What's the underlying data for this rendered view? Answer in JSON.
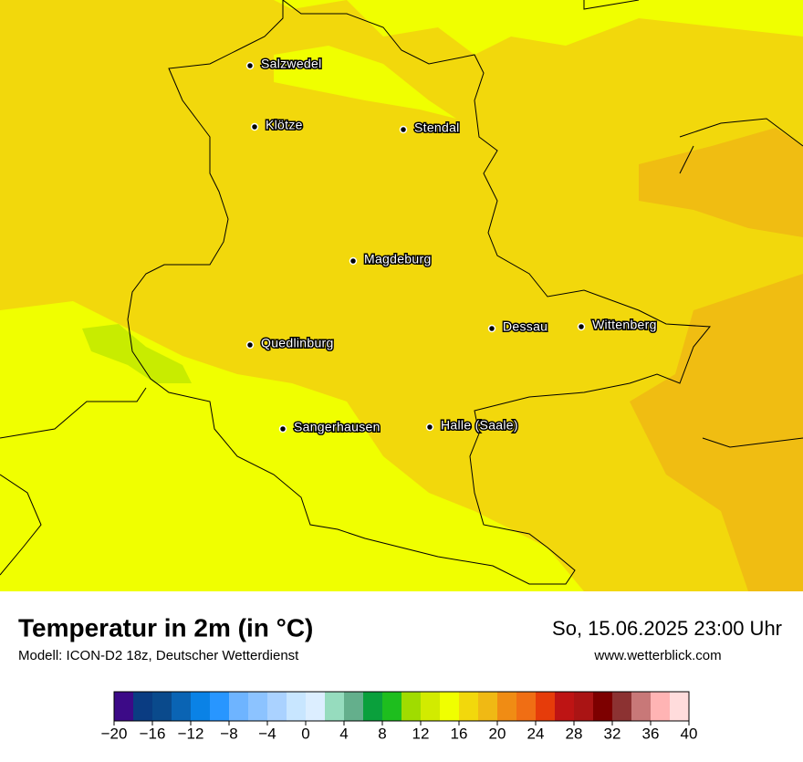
{
  "map": {
    "cities": [
      "Salzwedel",
      "Klötze",
      "Stendal",
      "Magdeburg",
      "Quedlinburg",
      "Dessau",
      "Wittenberg",
      "Sangerhausen",
      "Halle (Saale)"
    ]
  },
  "footer": {
    "title": "Temperatur in 2m (in °C)",
    "subtitle": "Modell: ICON-D2 18z, Deutscher Wetterdienst",
    "datetime": "So, 15.06.2025 23:00 Uhr",
    "website": "www.wetterblick.com"
  },
  "colorbar": {
    "range": [
      -20,
      40
    ],
    "colors": [
      "#3c0a87",
      "#0a3c82",
      "#0a4a8c",
      "#0a64b4",
      "#0a82e6",
      "#2896ff",
      "#6eb4ff",
      "#8cc3ff",
      "#aad2ff",
      "#c8e6ff",
      "#dceeff",
      "#96dcbe",
      "#64af8c",
      "#0aa03c",
      "#1ebe1e",
      "#a0dc00",
      "#d2eb00",
      "#f0ff00",
      "#f2d80c",
      "#f0b914",
      "#f08c14",
      "#f06e14",
      "#e63c0a",
      "#be1414",
      "#aa1414",
      "#7d0000",
      "#8c3232",
      "#c87878",
      "#ffb4b4",
      "#ffdcdc"
    ],
    "ticks": [
      {
        "value": -20,
        "label": "−20"
      },
      {
        "value": -16,
        "label": "−16"
      },
      {
        "value": -12,
        "label": "−12"
      },
      {
        "value": -8,
        "label": "−8"
      },
      {
        "value": -4,
        "label": "−4"
      },
      0,
      4,
      8,
      12,
      16,
      20,
      24,
      28,
      32,
      36,
      40
    ]
  }
}
